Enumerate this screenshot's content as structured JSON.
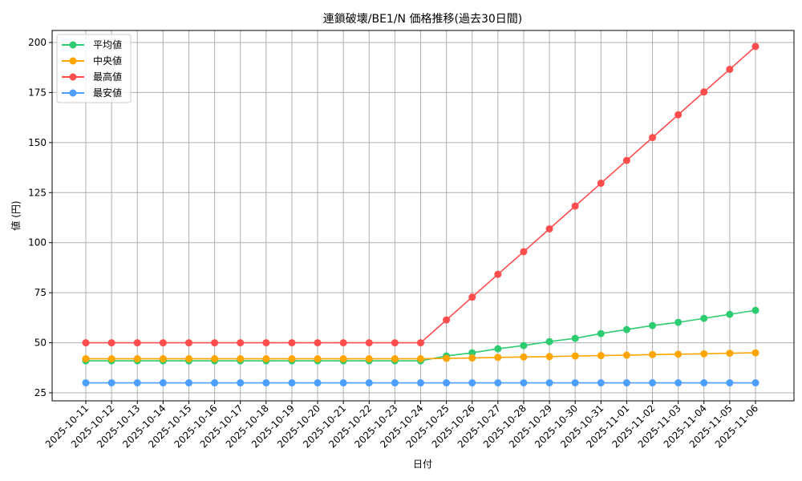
{
  "chart_data": {
    "type": "line",
    "title": "連鎖破壊/BE1/N 価格推移(過去30日間)",
    "xlabel": "日付",
    "ylabel": "値 (円)",
    "ylim": [
      21,
      206
    ],
    "yticks": [
      25,
      50,
      75,
      100,
      125,
      150,
      175,
      200
    ],
    "grid": true,
    "legend_position": "top-left",
    "categories": [
      "2025-10-11",
      "2025-10-12",
      "2025-10-13",
      "2025-10-14",
      "2025-10-15",
      "2025-10-16",
      "2025-10-17",
      "2025-10-18",
      "2025-10-19",
      "2025-10-20",
      "2025-10-21",
      "2025-10-22",
      "2025-10-23",
      "2025-10-24",
      "2025-10-25",
      "2025-10-26",
      "2025-10-27",
      "2025-10-28",
      "2025-10-29",
      "2025-10-30",
      "2025-10-31",
      "2025-11-01",
      "2025-11-02",
      "2025-11-03",
      "2025-11-04",
      "2025-11-05",
      "2025-11-06"
    ],
    "series": [
      {
        "name": "平均値",
        "color": "#2ecc71",
        "values": [
          41,
          41,
          41,
          41,
          41,
          41,
          41,
          41,
          41,
          41,
          41,
          41,
          41,
          41,
          43.4,
          45.0,
          47.0,
          48.6,
          50.6,
          52.2,
          54.6,
          56.6,
          58.6,
          60.2,
          62.2,
          64.2,
          66.2
        ]
      },
      {
        "name": "中央値",
        "color": "#ffa500",
        "values": [
          42,
          42,
          42,
          42,
          42,
          42,
          42,
          42,
          42,
          42,
          42,
          42,
          42,
          42,
          42.2,
          42.4,
          42.7,
          42.9,
          43.1,
          43.4,
          43.6,
          43.8,
          44.1,
          44.3,
          44.5,
          44.8,
          45.0
        ]
      },
      {
        "name": "最高値",
        "color": "#ff4c4c",
        "values": [
          50,
          50,
          50,
          50,
          50,
          50,
          50,
          50,
          50,
          50,
          50,
          50,
          50,
          50,
          61.4,
          72.8,
          84.2,
          95.5,
          106.9,
          118.3,
          129.7,
          141.1,
          152.5,
          163.9,
          175.3,
          186.6,
          198
        ]
      },
      {
        "name": "最安値",
        "color": "#4c9eff",
        "values": [
          30,
          30,
          30,
          30,
          30,
          30,
          30,
          30,
          30,
          30,
          30,
          30,
          30,
          30,
          30,
          30,
          30,
          30,
          30,
          30,
          30,
          30,
          30,
          30,
          30,
          30,
          30
        ]
      }
    ]
  }
}
